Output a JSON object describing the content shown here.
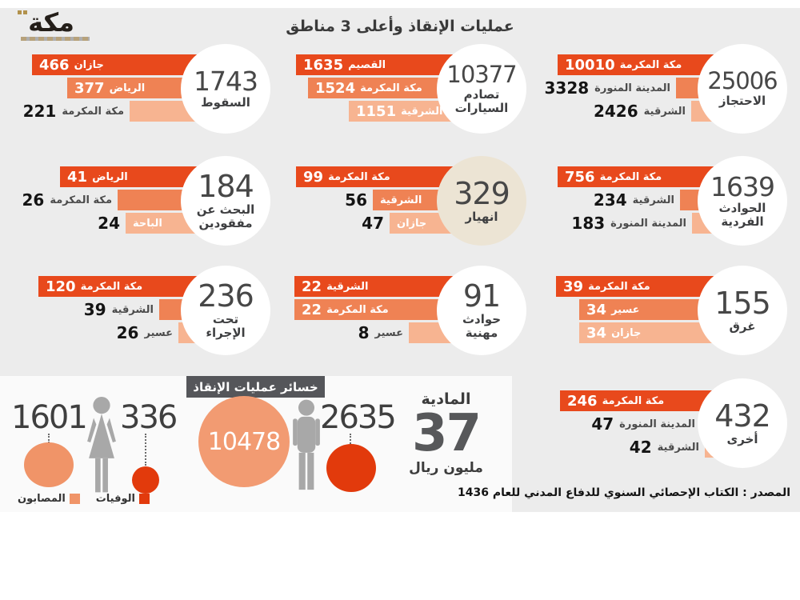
{
  "page": {
    "logo_text": "مكة",
    "title": "عمليات الإنقاذ وأعلى 3 مناطق",
    "source": "المصدر : الكتاب الإحصائي السنوي للدفاع المدني للعام 1436"
  },
  "colors": {
    "bar_dark": "#e8491c",
    "bar_medium": "#ef8254",
    "bar_light": "#f7b491",
    "circle_white": "#ffffff",
    "circle_beige": "#ece4d4",
    "injured_orange": "#f09468",
    "deaths_red": "#e23a0c",
    "icon_gray": "#a8a8a8",
    "badge_gray": "#55565a",
    "background": "#ececec"
  },
  "chart_data": {
    "type": "bar",
    "title": "عمليات الإنقاذ وأعلى 3 مناطق",
    "note": "top 3 regions per rescue-operation type, horizontal bars with total in circle",
    "groups": [
      {
        "category": "السقوط",
        "category_lines": [
          "السقوط"
        ],
        "total": "1743",
        "regions": [
          {
            "name": "جازان",
            "value": 466
          },
          {
            "name": "الرياض",
            "value": 377
          },
          {
            "name": "مكة المكرمة",
            "value": 221
          }
        ]
      },
      {
        "category": "تصادم السيارات",
        "category_lines": [
          "تصادم",
          "السيارات"
        ],
        "total": "10377",
        "regions": [
          {
            "name": "القصيم",
            "value": 1635
          },
          {
            "name": "مكة المكرمة",
            "value": 1524
          },
          {
            "name": "الشرقية",
            "value": 1151
          }
        ]
      },
      {
        "category": "الاحتجاز",
        "category_lines": [
          "الاحتجاز"
        ],
        "total": "25006",
        "regions": [
          {
            "name": "مكة المكرمة",
            "value": 10010
          },
          {
            "name": "المدينة المنورة",
            "value": 3328
          },
          {
            "name": "الشرقية",
            "value": 2426
          }
        ]
      },
      {
        "category": "البحث عن مفقودين",
        "category_lines": [
          "البحث عن",
          "مفقودين"
        ],
        "total": "184",
        "regions": [
          {
            "name": "الرياض",
            "value": 41
          },
          {
            "name": "مكة المكرمة",
            "value": 26
          },
          {
            "name": "الباحة",
            "value": 24
          }
        ]
      },
      {
        "category": "انهيار",
        "category_lines": [
          "انهيار"
        ],
        "total": "329",
        "regions": [
          {
            "name": "مكة المكرمة",
            "value": 99
          },
          {
            "name": "الشرقية",
            "value": 56
          },
          {
            "name": "جازان",
            "value": 47
          }
        ]
      },
      {
        "category": "الحوادث الفردية",
        "category_lines": [
          "الحوادث",
          "الفردية"
        ],
        "total": "1639",
        "regions": [
          {
            "name": "مكة المكرمة",
            "value": 756
          },
          {
            "name": "الشرقية",
            "value": 234
          },
          {
            "name": "المدينة المنورة",
            "value": 183
          }
        ]
      },
      {
        "category": "تحت الإجراء",
        "category_lines": [
          "تحت",
          "الإجراء"
        ],
        "total": "236",
        "regions": [
          {
            "name": "مكة المكرمة",
            "value": 120
          },
          {
            "name": "الشرقية",
            "value": 39
          },
          {
            "name": "عسير",
            "value": 26
          }
        ]
      },
      {
        "category": "حوادث مهنية",
        "category_lines": [
          "حوادث",
          "مهنية"
        ],
        "total": "91",
        "regions": [
          {
            "name": "الشرقية",
            "value": 22
          },
          {
            "name": "مكة المكرمة",
            "value": 22
          },
          {
            "name": "عسير",
            "value": 8
          }
        ]
      },
      {
        "category": "غرق",
        "category_lines": [
          "غرق"
        ],
        "total": "155",
        "regions": [
          {
            "name": "مكة المكرمة",
            "value": 39
          },
          {
            "name": "عسير",
            "value": 34
          },
          {
            "name": "جازان",
            "value": 34
          }
        ]
      },
      {
        "category": "أخرى",
        "category_lines": [
          "أخرى"
        ],
        "total": "432",
        "regions": [
          {
            "name": "مكة المكرمة",
            "value": 246
          },
          {
            "name": "المدينة المنورة",
            "value": 47
          },
          {
            "name": "الشرقية",
            "value": 42
          }
        ]
      }
    ],
    "losses": {
      "badge": "خسائر عمليات الإنقاذ",
      "females": {
        "injured": "1601",
        "deaths": "336"
      },
      "males": {
        "injured": "10478",
        "deaths": "2635"
      },
      "legend": {
        "injured": "المصابون",
        "deaths": "الوفيات"
      },
      "material": {
        "label": "المادية",
        "value": "37",
        "unit": "مليون ريال"
      }
    }
  }
}
